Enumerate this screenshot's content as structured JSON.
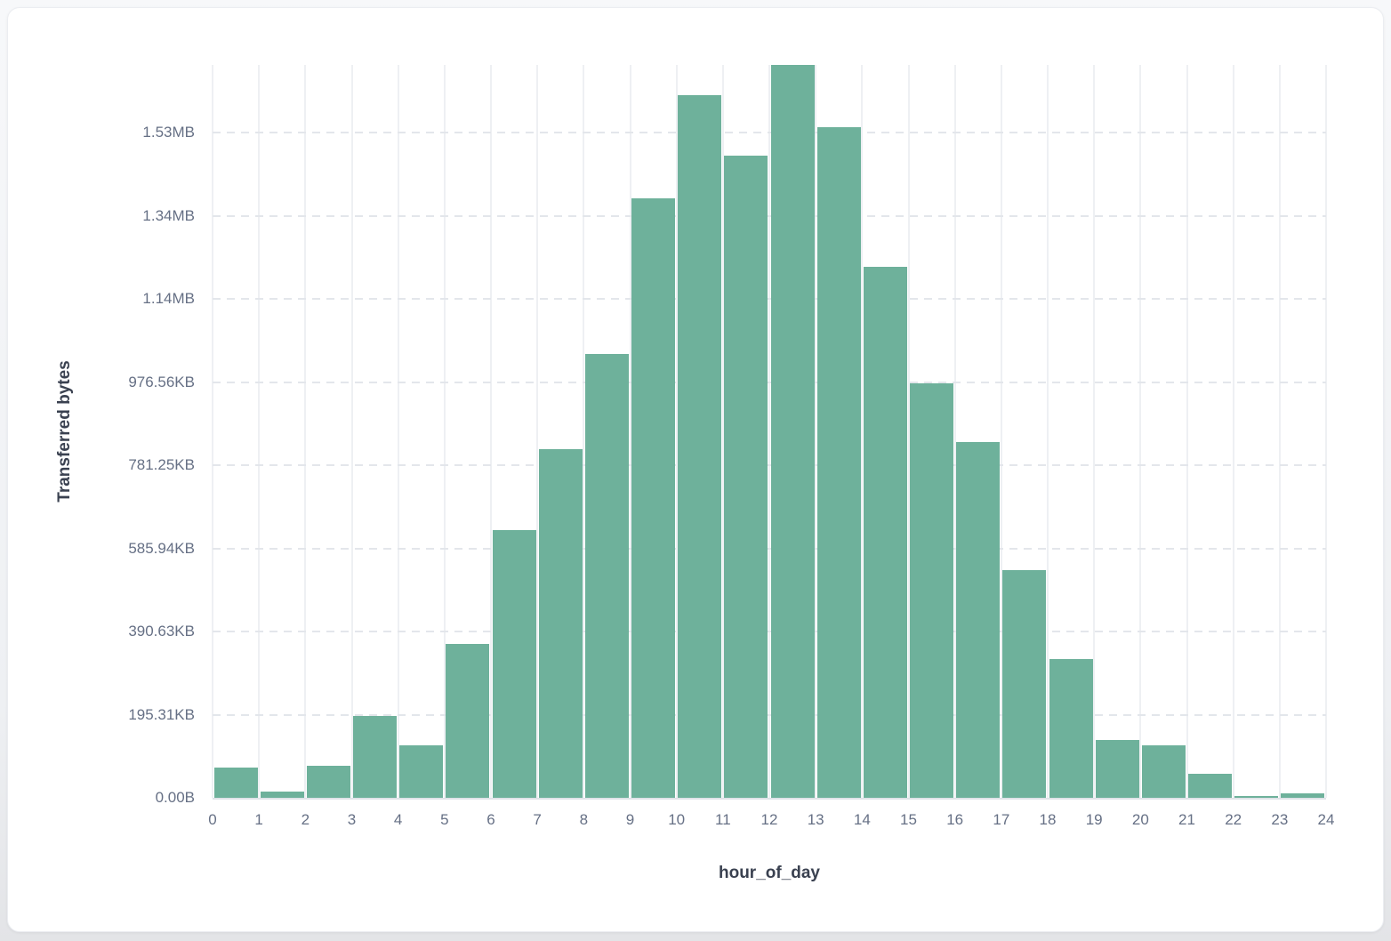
{
  "chart_data": {
    "type": "bar",
    "title": "",
    "xlabel": "hour_of_day",
    "ylabel": "Transferred bytes",
    "categories": [
      0,
      1,
      2,
      3,
      4,
      5,
      6,
      7,
      8,
      9,
      10,
      11,
      12,
      13,
      14,
      15,
      16,
      17,
      18,
      19,
      20,
      21,
      22,
      23
    ],
    "values_kb": [
      71,
      15,
      75,
      192,
      123,
      361,
      629,
      819,
      1042,
      1408,
      1650,
      1508,
      1721,
      1575,
      1247,
      973,
      836,
      535,
      326,
      136,
      123,
      56,
      4,
      10
    ],
    "x_tick_labels": [
      "0",
      "1",
      "2",
      "3",
      "4",
      "5",
      "6",
      "7",
      "8",
      "9",
      "10",
      "11",
      "12",
      "13",
      "14",
      "15",
      "16",
      "17",
      "18",
      "19",
      "20",
      "21",
      "22",
      "23",
      "24"
    ],
    "y_tick_labels": [
      "0.00B",
      "195.31KB",
      "390.63KB",
      "585.94KB",
      "781.25KB",
      "976.56KB",
      "1.14MB",
      "1.34MB",
      "1.53MB"
    ],
    "y_tick_values_kb": [
      0,
      195.31,
      390.63,
      585.94,
      781.25,
      976.56,
      1171.88,
      1367.19,
      1562.5
    ],
    "xlim": [
      0,
      24
    ],
    "ylim_kb": [
      0,
      1721.4
    ],
    "grid": {
      "vertical": "solid",
      "horizontal": "dashed"
    },
    "legend": "none",
    "bar_color": "#6eb19b"
  },
  "colors": {
    "bar": "#6eb19b",
    "vgrid": "#eef0f3",
    "hgrid": "#e3e6eb",
    "baseline": "#e0e3e8",
    "tick-text": "#667085",
    "axis-title-text": "#3a4150",
    "card-bg": "#ffffff",
    "page-bg-top": "#f7f8fa",
    "page-bg-bottom": "#e3e4e7"
  }
}
